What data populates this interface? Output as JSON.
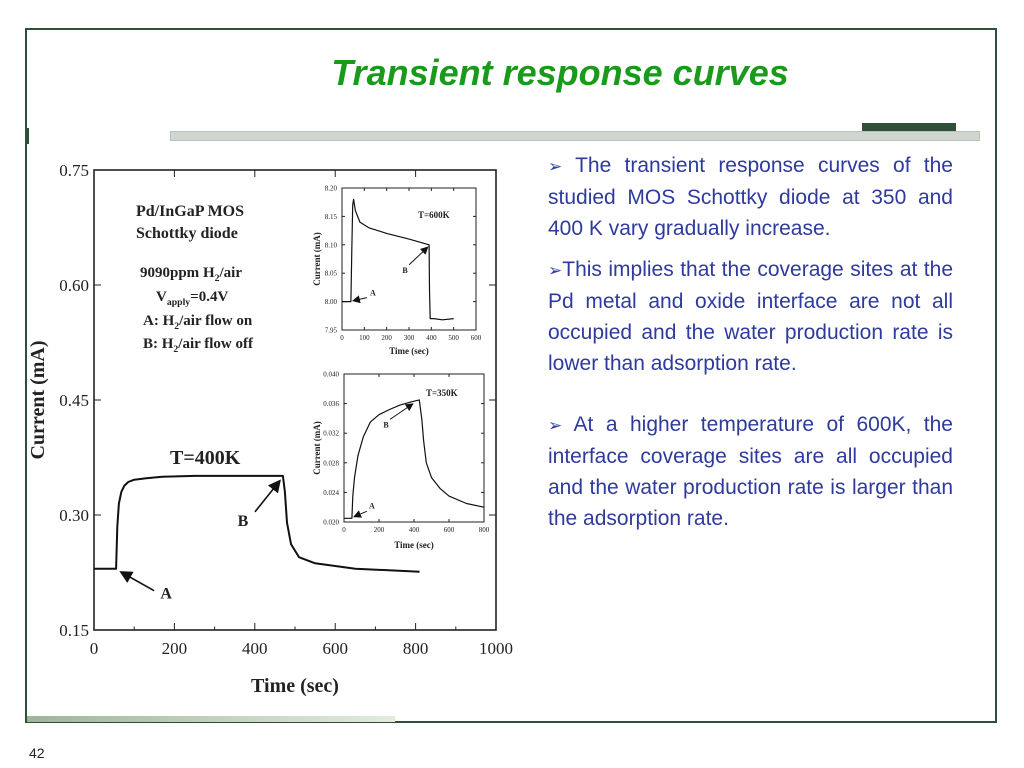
{
  "slide": {
    "title": "Transient response curves",
    "page_number": "42",
    "bullet_marker": "➢",
    "bullets": [
      "The transient response curves of the studied MOS Schottky diode at 350 and 400 K vary gradually increase.",
      "This implies that the coverage sites at the Pd metal and oxide interface are not all occupied and the water production rate is lower than adsorption rate.",
      "At a higher temperature of 600K, the interface coverage sites are all occupied and the water production rate is larger than the adsorption rate."
    ]
  },
  "colors": {
    "title": "#1a9a1a",
    "text": "#2e3a9c",
    "frame": "#2f4f3b"
  },
  "chart_data": [
    {
      "type": "line",
      "xlabel": "Time (sec)",
      "ylabel": "Current (mA)",
      "xlim": [
        0,
        1000
      ],
      "ylim": [
        0.15,
        0.75
      ],
      "xticks": [
        "0",
        "200",
        "400",
        "600",
        "800",
        "1000"
      ],
      "yticks": [
        "0.15",
        "0.30",
        "0.45",
        "0.60",
        "0.75"
      ],
      "info_lines": [
        "Pd/InGaP MOS",
        "Schottky diode",
        "9090ppm H2/air",
        "Vapply=0.4V",
        "A: H2/air flow on",
        "B: H2/air flow off"
      ],
      "series": [
        {
          "name": "T=400K",
          "x": [
            0,
            55,
            58,
            62,
            68,
            75,
            85,
            100,
            130,
            170,
            250,
            350,
            470,
            475,
            480,
            490,
            510,
            550,
            650,
            810
          ],
          "y": [
            0.23,
            0.23,
            0.285,
            0.315,
            0.33,
            0.338,
            0.343,
            0.346,
            0.348,
            0.35,
            0.351,
            0.351,
            0.351,
            0.33,
            0.29,
            0.262,
            0.245,
            0.237,
            0.23,
            0.226
          ]
        }
      ],
      "annotations": [
        {
          "text": "A",
          "x": 55,
          "y": 0.23
        },
        {
          "text": "B",
          "x": 470,
          "y": 0.351
        }
      ]
    },
    {
      "type": "line",
      "xlabel": "Time (sec)",
      "ylabel": "Current (mA)",
      "xlim": [
        0,
        600
      ],
      "ylim": [
        7.95,
        8.2
      ],
      "xticks": [
        "0",
        "100",
        "200",
        "300",
        "400",
        "500",
        "600"
      ],
      "yticks": [
        "7.95",
        "8.00",
        "8.05",
        "8.10",
        "8.15",
        "8.20"
      ],
      "series": [
        {
          "name": "T=600K",
          "x": [
            0,
            20,
            40,
            44,
            48,
            52,
            60,
            80,
            120,
            200,
            300,
            390,
            392,
            395,
            410,
            450,
            500
          ],
          "y": [
            8.0,
            8.0,
            8.0,
            8.09,
            8.17,
            8.18,
            8.16,
            8.14,
            8.13,
            8.12,
            8.11,
            8.1,
            8.02,
            7.97,
            7.97,
            7.968,
            7.97
          ]
        }
      ],
      "annotations": [
        {
          "text": "A",
          "x": 40,
          "y": 8.0
        },
        {
          "text": "B",
          "x": 390,
          "y": 8.1
        }
      ]
    },
    {
      "type": "line",
      "xlabel": "Time (sec)",
      "ylabel": "Current (mA)",
      "xlim": [
        0,
        800
      ],
      "ylim": [
        0.02,
        0.04
      ],
      "xticks": [
        "0",
        "200",
        "400",
        "600",
        "800"
      ],
      "yticks": [
        "0.020",
        "0.024",
        "0.028",
        "0.032",
        "0.036",
        "0.040"
      ],
      "series": [
        {
          "name": "T=350K",
          "x": [
            0,
            45,
            50,
            60,
            80,
            110,
            150,
            200,
            260,
            320,
            380,
            430,
            445,
            455,
            470,
            500,
            550,
            600,
            700,
            800
          ],
          "y": [
            0.0205,
            0.0205,
            0.0235,
            0.026,
            0.029,
            0.0315,
            0.0335,
            0.0345,
            0.0352,
            0.0358,
            0.0362,
            0.0365,
            0.0338,
            0.031,
            0.028,
            0.026,
            0.0245,
            0.0235,
            0.0225,
            0.022
          ]
        }
      ],
      "annotations": [
        {
          "text": "A",
          "x": 45,
          "y": 0.0205
        },
        {
          "text": "B",
          "x": 400,
          "y": 0.0363
        }
      ]
    }
  ]
}
